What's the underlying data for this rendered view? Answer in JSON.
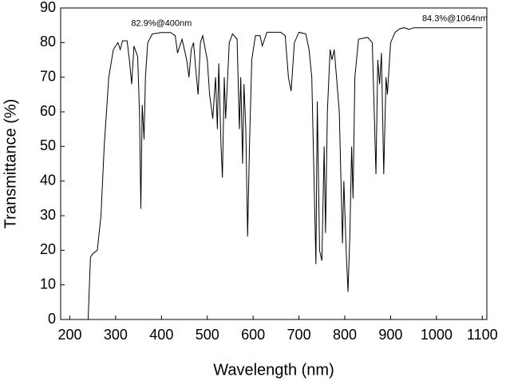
{
  "chart_data": {
    "type": "line",
    "x_label": "Wavelength (nm)",
    "y_label": "Transmittance (%)",
    "color": "#000000",
    "xlim": [
      180,
      1110
    ],
    "ylim": [
      0,
      90
    ],
    "xticks": [
      200,
      300,
      400,
      500,
      600,
      700,
      800,
      900,
      1000,
      1100
    ],
    "yticks": [
      0,
      10,
      20,
      30,
      40,
      50,
      60,
      70,
      80,
      90
    ],
    "annotations": [
      {
        "text": "82.9%@400nm",
        "x": 400,
        "y": 82.9
      },
      {
        "text": "84.3%@1064nm",
        "x": 1064,
        "y": 84.3
      }
    ],
    "x": [
      240,
      245,
      250,
      260,
      268,
      275,
      285,
      295,
      305,
      310,
      315,
      325,
      330,
      335,
      340,
      348,
      352,
      355,
      358,
      362,
      365,
      370,
      380,
      400,
      420,
      430,
      435,
      445,
      455,
      460,
      465,
      470,
      475,
      480,
      485,
      490,
      500,
      505,
      512,
      518,
      522,
      525,
      530,
      533,
      537,
      540,
      548,
      555,
      565,
      570,
      573,
      577,
      580,
      584,
      588,
      592,
      597,
      605,
      615,
      620,
      630,
      660,
      670,
      677,
      683,
      690,
      700,
      715,
      722,
      728,
      733,
      737,
      740,
      745,
      750,
      755,
      758,
      762,
      768,
      772,
      777,
      782,
      788,
      795,
      798,
      803,
      807,
      811,
      815,
      818,
      822,
      830,
      850,
      860,
      868,
      872,
      876,
      880,
      885,
      890,
      893,
      900,
      910,
      920,
      930,
      940,
      950,
      1064,
      1100
    ],
    "y": [
      0,
      18,
      19,
      20,
      30,
      50,
      70,
      78,
      80,
      78,
      80.5,
      80.5,
      75,
      68,
      79,
      76,
      60,
      32,
      62,
      52,
      70,
      80,
      82.5,
      82.9,
      82.9,
      82,
      77,
      81,
      75,
      70,
      78,
      80,
      72,
      65,
      80,
      82,
      75,
      65,
      58,
      70,
      55,
      74,
      50,
      41,
      70,
      58,
      80,
      82.5,
      81,
      55,
      70,
      45,
      68,
      55,
      24,
      50,
      75,
      82,
      82,
      79,
      83,
      83,
      82,
      70,
      66,
      80,
      83,
      82.5,
      78,
      70,
      40,
      16,
      63,
      20,
      17,
      50,
      25,
      60,
      78,
      75,
      78,
      70,
      60,
      22,
      40,
      20,
      8,
      24,
      50,
      35,
      70,
      81,
      81.5,
      80,
      42,
      75,
      68,
      77,
      42,
      70,
      65,
      80,
      83,
      84,
      84.3,
      83.8,
      84.3,
      84.3,
      84.3
    ]
  }
}
